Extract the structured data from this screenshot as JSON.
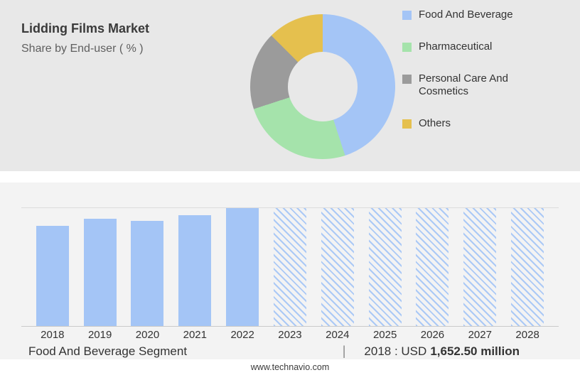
{
  "header": {
    "title": "Lidding Films Market",
    "subtitle": "Share by End-user ( % )"
  },
  "chart_data": [
    {
      "type": "pie",
      "title": "Share by End-user ( % )",
      "donut": true,
      "legend_position": "right",
      "labels": [
        "Food And Beverage",
        "Pharmaceutical",
        "Personal Care And Cosmetics",
        "Others"
      ],
      "values": [
        45,
        25,
        17.5,
        12.5
      ],
      "colors": [
        "#a4c5f6",
        "#a5e3ab",
        "#9b9b9b",
        "#e5c04e"
      ],
      "hole_color": "#e8e8e8"
    },
    {
      "type": "bar",
      "categories": [
        "2018",
        "2019",
        "2020",
        "2021",
        "2022",
        "2023",
        "2024",
        "2025",
        "2026",
        "2027",
        "2028"
      ],
      "values": [
        85,
        91,
        89,
        94,
        100,
        100,
        100,
        100,
        100,
        100,
        100
      ],
      "values_note": "relative bar heights in % of plot height; no numeric axis shown",
      "ylim": [
        0,
        100
      ],
      "bar_color": "#a4c5f6",
      "solid_years": [
        "2018",
        "2019",
        "2020",
        "2021",
        "2022"
      ],
      "hatched_years": [
        "2023",
        "2024",
        "2025",
        "2026",
        "2027",
        "2028"
      ],
      "hatched_meaning": "forecast",
      "grid": "top and baseline lines only",
      "xlabel": "",
      "ylabel": ""
    }
  ],
  "caption": {
    "segment_label": "Food And Beverage Segment",
    "separator": "|",
    "value_prefix": "2018 : USD",
    "value_bold": "1,652.50 million"
  },
  "footer": {
    "website": "www.technavio.com"
  }
}
